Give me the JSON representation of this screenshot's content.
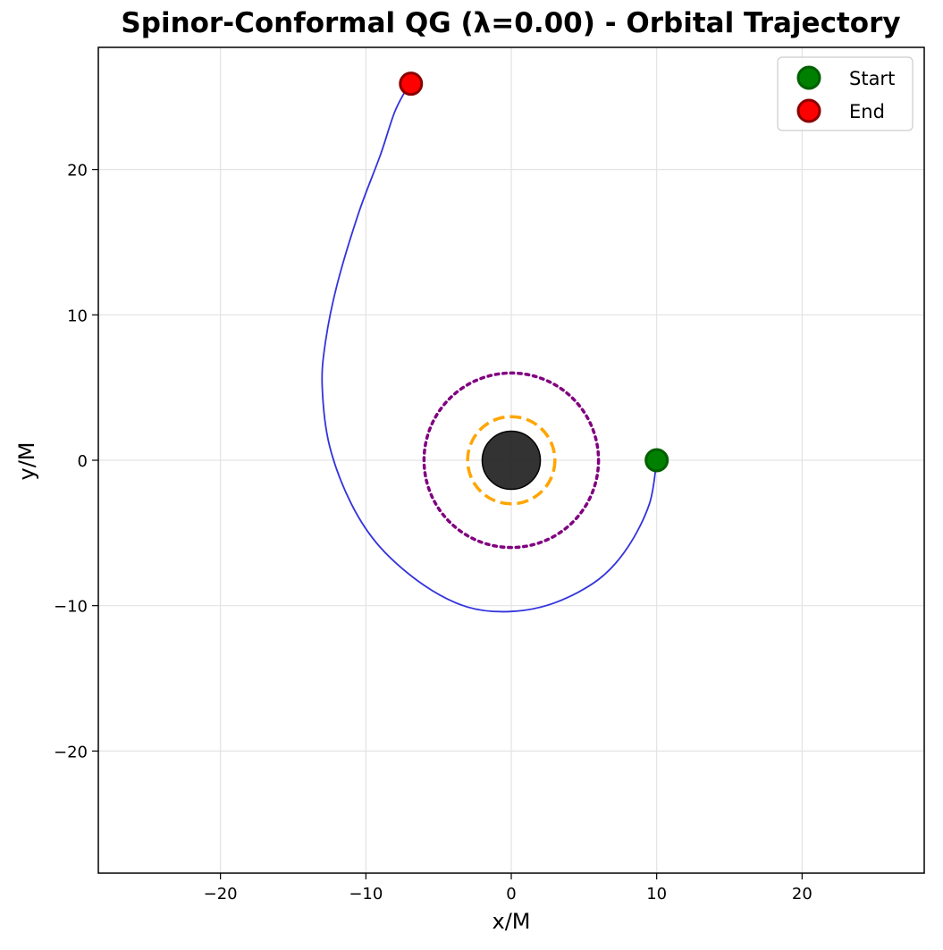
{
  "chart_data": {
    "type": "scatter",
    "title": "Spinor-Conformal QG (λ=0.00) - Orbital Trajectory",
    "xlabel": "x/M",
    "ylabel": "y/M",
    "xlim": [
      -28.4,
      28.4
    ],
    "ylim": [
      -28.4,
      28.4
    ],
    "xticks": [
      -20,
      -10,
      0,
      10,
      20
    ],
    "yticks": [
      -20,
      -10,
      0,
      10,
      20
    ],
    "xtick_labels": [
      "−20",
      "−10",
      "0",
      "10",
      "20"
    ],
    "ytick_labels": [
      "−20",
      "−10",
      "0",
      "10",
      "20"
    ],
    "grid": true,
    "legend_position": "top-right",
    "trajectory": {
      "color": "#3333dd",
      "x": [
        10.0,
        9.5,
        8.0,
        6.0,
        3.0,
        0.0,
        -3.0,
        -6.0,
        -9.0,
        -11.0,
        -12.5,
        -13.0,
        -12.8,
        -12.0,
        -10.5,
        -9.0,
        -8.0,
        -7.0
      ],
      "y": [
        0.0,
        -3.0,
        -6.0,
        -8.2,
        -9.8,
        -10.4,
        -10.1,
        -8.6,
        -6.0,
        -3.0,
        1.0,
        5.0,
        8.0,
        12.0,
        17.0,
        21.0,
        24.0,
        25.9
      ]
    },
    "black_hole": {
      "x": 0,
      "y": 0,
      "radius": 2.0,
      "color": "#222222"
    },
    "circle_orange": {
      "radius": 3.0,
      "color": "#ffa500",
      "style": "dashed"
    },
    "circle_purple": {
      "radius": 6.0,
      "color": "#800080",
      "style": "dotted"
    },
    "markers": [
      {
        "name": "Start",
        "x": 10.0,
        "y": 0.0,
        "fill": "#008000",
        "edge": "#006000"
      },
      {
        "name": "End",
        "x": -6.9,
        "y": 25.9,
        "fill": "#ff0000",
        "edge": "#8b0000"
      }
    ]
  }
}
